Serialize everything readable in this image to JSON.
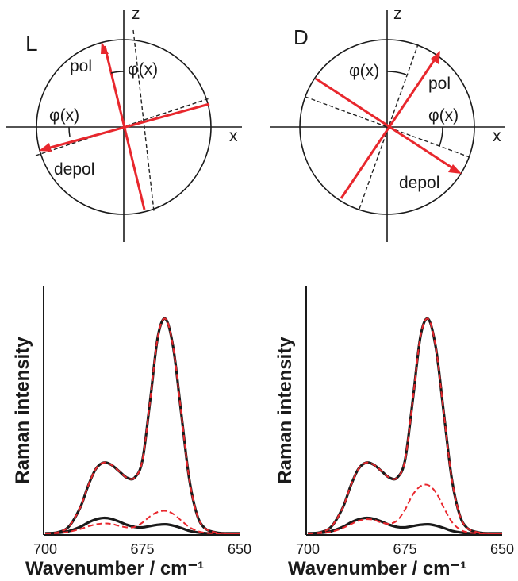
{
  "colors": {
    "red": "#e8272d",
    "black": "#1a1a1a",
    "dashed_black": "#222222"
  },
  "diagrams": [
    {
      "panel_label": "L",
      "axis_x_label": "x",
      "axis_z_label": "z",
      "pol_label": "pol",
      "depol_label": "depol",
      "angle_label_top": "φ(x)",
      "angle_label_side": "φ(x)"
    },
    {
      "panel_label": "D",
      "axis_x_label": "x",
      "axis_z_label": "z",
      "pol_label": "pol",
      "depol_label": "depol",
      "angle_label_top": "φ(x)",
      "angle_label_side": "φ(x)"
    }
  ],
  "chart_data": [
    {
      "type": "line",
      "panel": "L",
      "xlabel": "Wavenumber / cm⁻¹",
      "ylabel": "Raman intensity",
      "xlim": [
        700,
        650
      ],
      "ylim": [
        0,
        1
      ],
      "x_ticks": [
        "700",
        "675",
        "650"
      ],
      "x_tick_values": [
        700,
        675,
        650
      ],
      "x": [
        700,
        697,
        694,
        691,
        689,
        687,
        685,
        683,
        681,
        679,
        677,
        675,
        673,
        671,
        669,
        667,
        665,
        663,
        661,
        659,
        656,
        653,
        650
      ],
      "series": [
        {
          "style": "solid-black",
          "values": [
            0,
            0.004,
            0.03,
            0.12,
            0.22,
            0.3,
            0.33,
            0.32,
            0.29,
            0.26,
            0.26,
            0.34,
            0.62,
            0.92,
            1.0,
            0.86,
            0.56,
            0.26,
            0.09,
            0.025,
            0.004,
            0,
            0
          ]
        },
        {
          "style": "dashed-red",
          "values": [
            0,
            0.004,
            0.03,
            0.12,
            0.22,
            0.3,
            0.33,
            0.32,
            0.29,
            0.26,
            0.26,
            0.34,
            0.62,
            0.92,
            1.0,
            0.86,
            0.56,
            0.26,
            0.09,
            0.025,
            0.004,
            0,
            0
          ]
        },
        {
          "style": "solid-black",
          "values": [
            0,
            0.002,
            0.01,
            0.03,
            0.05,
            0.065,
            0.072,
            0.068,
            0.055,
            0.04,
            0.03,
            0.028,
            0.034,
            0.04,
            0.042,
            0.036,
            0.025,
            0.012,
            0.005,
            0.001,
            0,
            0,
            0
          ]
        },
        {
          "style": "dashed-red",
          "values": [
            0,
            0.001,
            0.007,
            0.02,
            0.032,
            0.042,
            0.046,
            0.044,
            0.035,
            0.028,
            0.03,
            0.05,
            0.08,
            0.1,
            0.105,
            0.09,
            0.06,
            0.03,
            0.012,
            0.003,
            0,
            0,
            0
          ]
        }
      ]
    },
    {
      "type": "line",
      "panel": "D",
      "xlabel": "Wavenumber / cm⁻¹",
      "ylabel": "Raman intensity",
      "xlim": [
        700,
        650
      ],
      "ylim": [
        0,
        1
      ],
      "x_ticks": [
        "700",
        "675",
        "650"
      ],
      "x_tick_values": [
        700,
        675,
        650
      ],
      "x": [
        700,
        697,
        694,
        691,
        689,
        687,
        685,
        683,
        681,
        679,
        677,
        675,
        673,
        671,
        669,
        667,
        665,
        663,
        661,
        659,
        656,
        653,
        650
      ],
      "series": [
        {
          "style": "solid-black",
          "values": [
            0,
            0.004,
            0.03,
            0.12,
            0.22,
            0.3,
            0.33,
            0.32,
            0.29,
            0.26,
            0.26,
            0.34,
            0.62,
            0.92,
            1.0,
            0.86,
            0.56,
            0.26,
            0.09,
            0.025,
            0.004,
            0,
            0
          ]
        },
        {
          "style": "dashed-red",
          "values": [
            0,
            0.004,
            0.03,
            0.12,
            0.22,
            0.3,
            0.33,
            0.32,
            0.29,
            0.26,
            0.26,
            0.34,
            0.62,
            0.92,
            1.0,
            0.86,
            0.56,
            0.26,
            0.09,
            0.025,
            0.004,
            0,
            0
          ]
        },
        {
          "style": "solid-black",
          "values": [
            0,
            0.002,
            0.01,
            0.03,
            0.05,
            0.065,
            0.072,
            0.068,
            0.055,
            0.04,
            0.03,
            0.028,
            0.034,
            0.04,
            0.042,
            0.036,
            0.025,
            0.012,
            0.005,
            0.001,
            0,
            0,
            0
          ]
        },
        {
          "style": "dashed-red",
          "values": [
            0,
            0.001,
            0.007,
            0.025,
            0.042,
            0.058,
            0.066,
            0.063,
            0.05,
            0.045,
            0.06,
            0.11,
            0.18,
            0.22,
            0.225,
            0.19,
            0.12,
            0.055,
            0.02,
            0.005,
            0,
            0,
            0
          ]
        }
      ]
    }
  ]
}
